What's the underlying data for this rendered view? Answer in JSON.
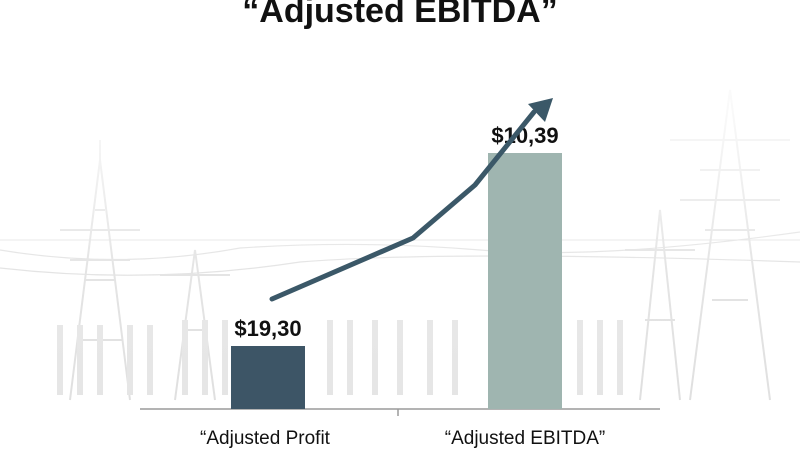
{
  "chart_data": {
    "type": "bar",
    "title": "“Adjusted EBITDA”",
    "categories": [
      "“Adjusted Profit",
      "“Adjusted EBITDA”"
    ],
    "value_labels": [
      "$19,30",
      "$10,39"
    ],
    "values": [
      19.3,
      10.39
    ],
    "trend_arrow": true,
    "grid": false,
    "legend": "none"
  },
  "colors": {
    "bar_1": "#3d5566",
    "bar_2": "#9fb5b0",
    "trend_line": "#3b5868",
    "axis": "#9a9a9a",
    "text": "#111111",
    "background": "#ffffff",
    "background_art": "power-transmission-towers"
  }
}
